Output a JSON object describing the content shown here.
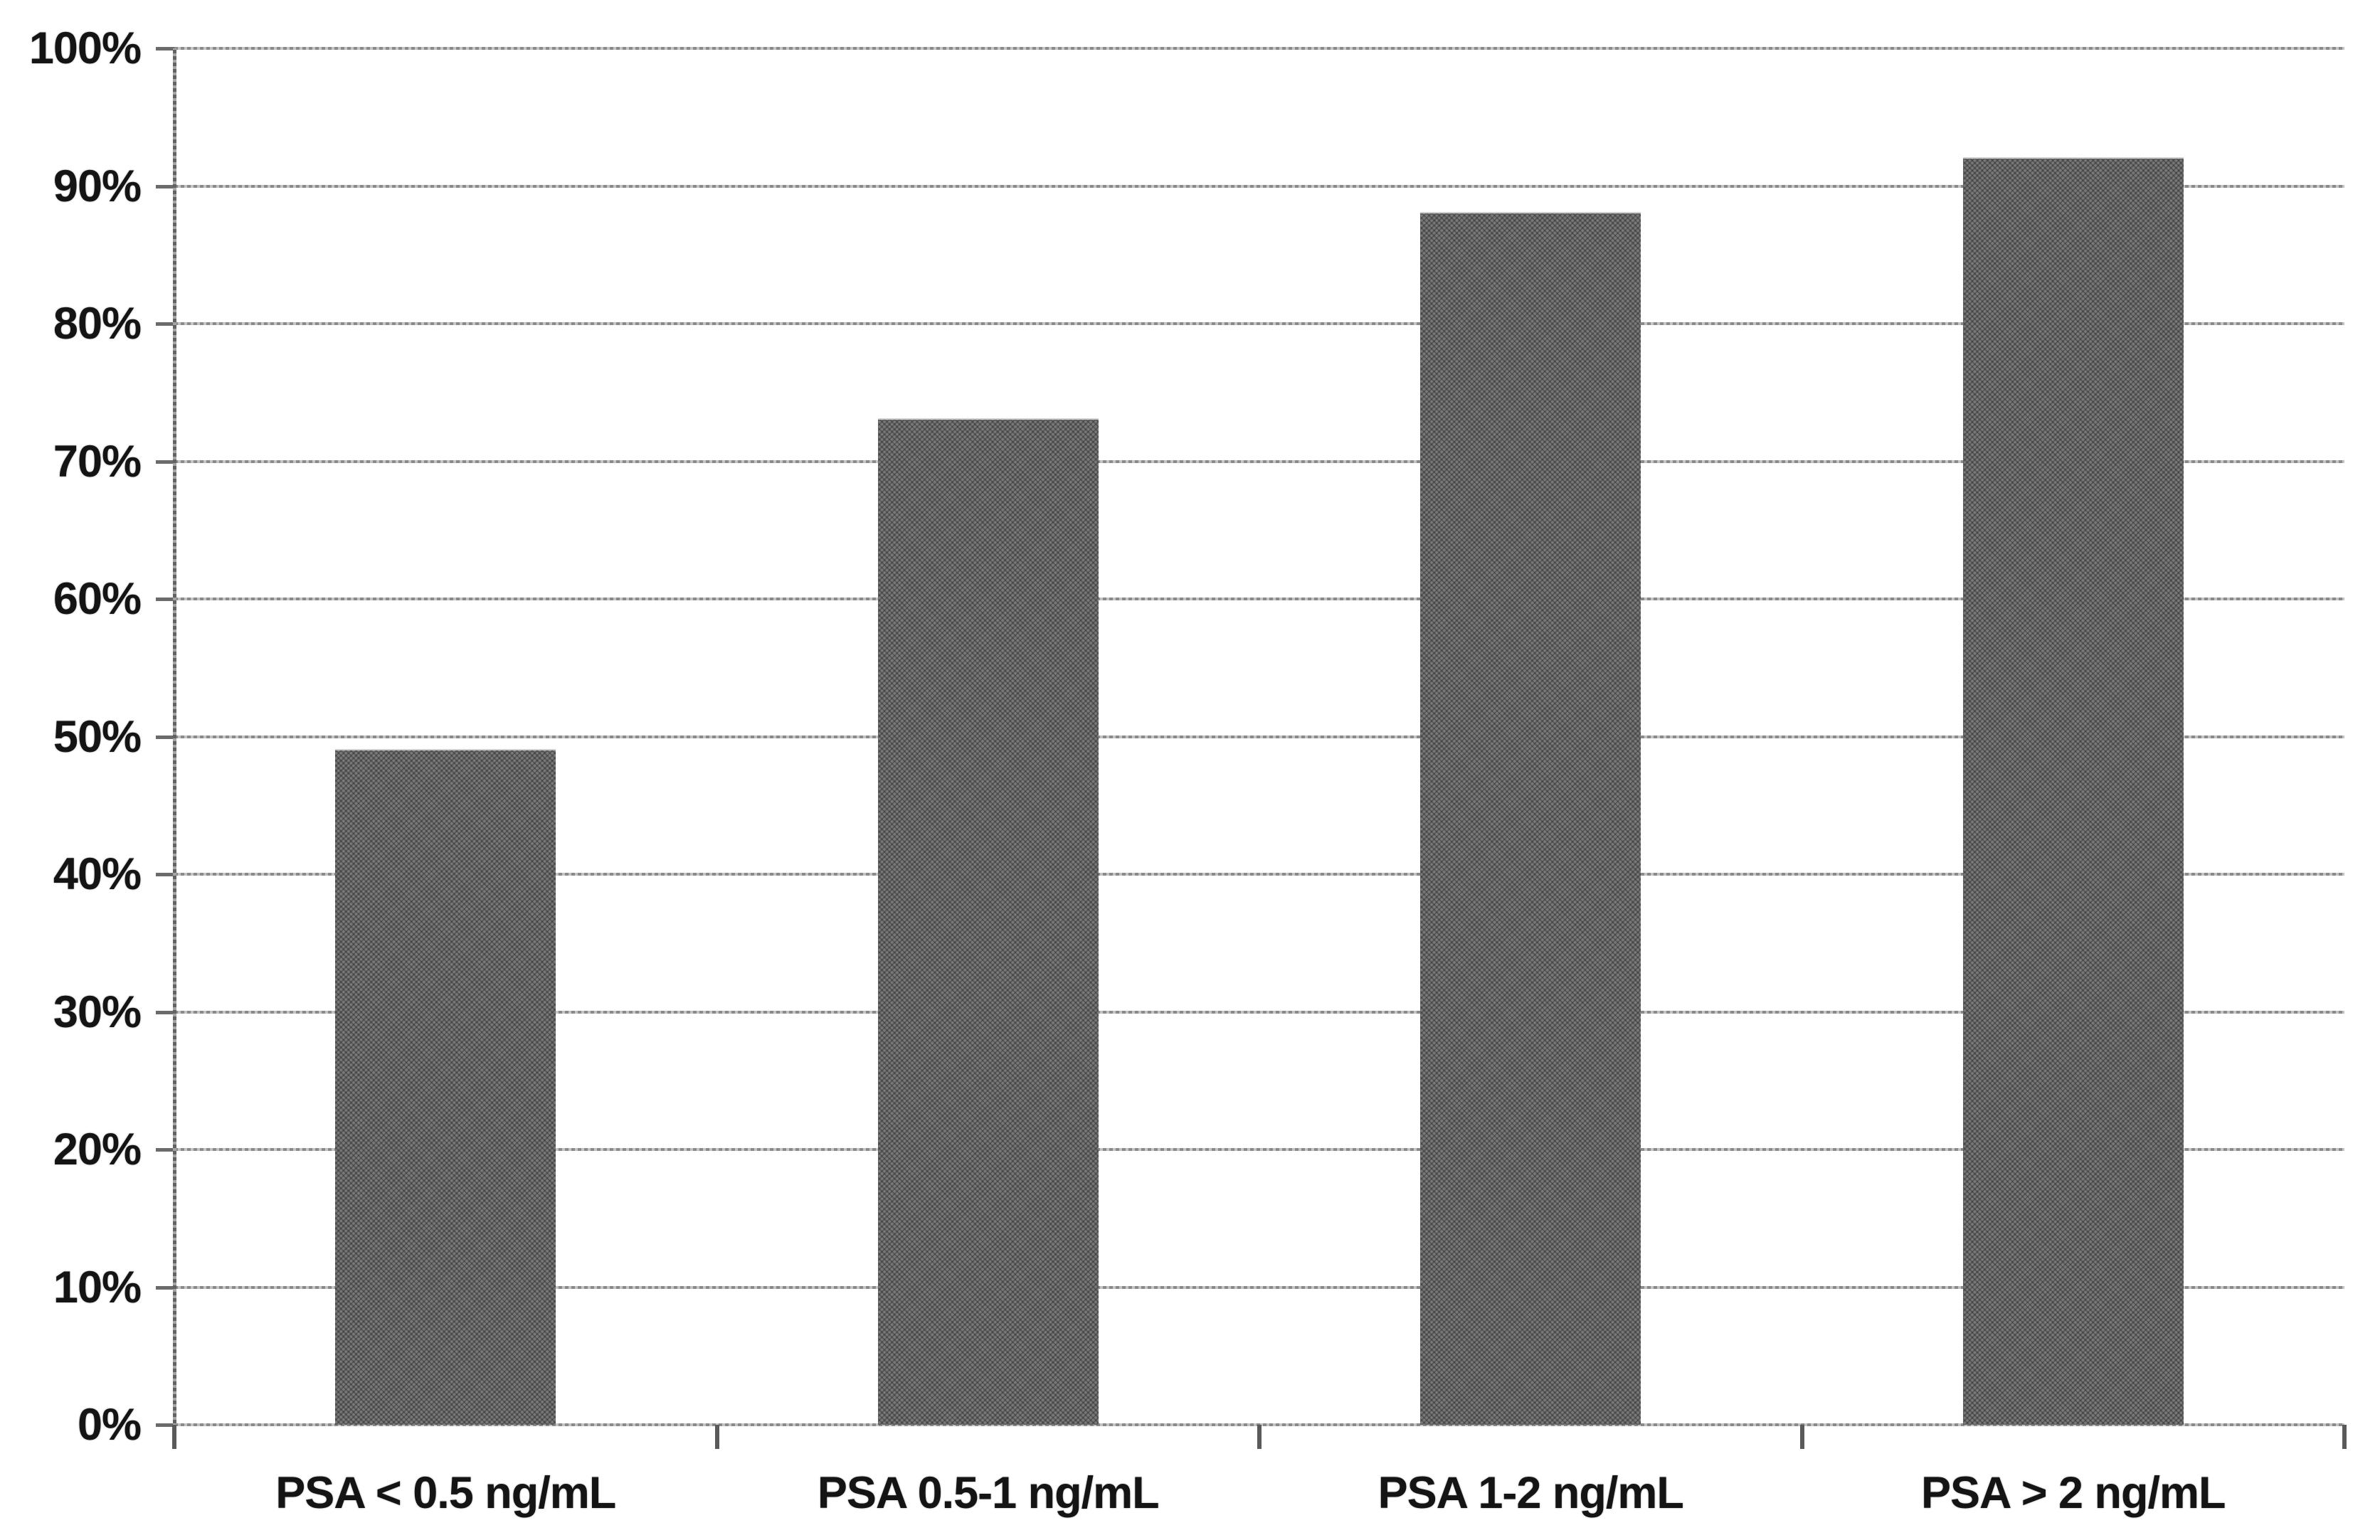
{
  "figure": {
    "background": "#ffffff"
  },
  "chart_data": {
    "type": "bar",
    "categories": [
      "PSA < 0.5 ng/mL",
      "PSA 0.5-1 ng/mL",
      "PSA 1-2 ng/mL",
      "PSA > 2 ng/mL"
    ],
    "values": [
      49,
      73,
      88,
      92
    ],
    "value_format": "percent",
    "ylim": [
      0,
      100
    ],
    "y_axis": {
      "min": 0,
      "max": 100,
      "step": 10,
      "tick_values": [
        0,
        10,
        20,
        30,
        40,
        50,
        60,
        70,
        80,
        90,
        100
      ],
      "tick_labels": [
        "0%",
        "10%",
        "20%",
        "30%",
        "40%",
        "50%",
        "60%",
        "70%",
        "80%",
        "90%",
        "100%"
      ]
    },
    "grid": "horizontal",
    "legend": "none",
    "bar_color": "#646464",
    "gridline_color": "#a2a2a2",
    "axis_color": "#6b6b6b",
    "text_color": "#141414"
  }
}
